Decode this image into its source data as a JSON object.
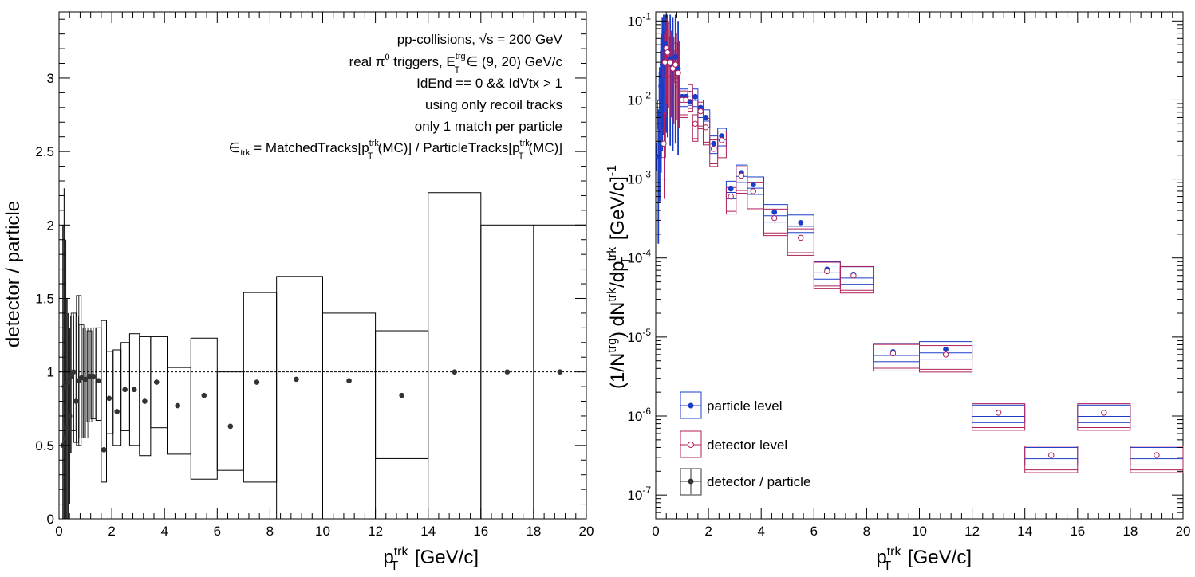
{
  "chart_data": [
    {
      "type": "scatter",
      "xlabel": "p_T^trk [GeV/c]",
      "ylabel": "detector / particle",
      "xlim": [
        0,
        20
      ],
      "ylim": [
        0,
        3.45
      ],
      "log_y": false,
      "grid": false,
      "reference_line": 1.0,
      "x_ticks": [
        "0",
        "2",
        "4",
        "6",
        "8",
        "10",
        "12",
        "14",
        "16",
        "18",
        "20"
      ],
      "y_ticks": [
        "0",
        "0.5",
        "1",
        "1.5",
        "2",
        "2.5",
        "3"
      ],
      "annotations": [
        "pp-collisions, √s = 200 GeV",
        "real π⁰ triggers, E_T^trg ∈ (9, 20) GeV/c",
        "IdEnd == 0 && IdVtx > 1",
        "using only recoil tracks",
        "only 1 match per particle",
        "∈_trk = MatchedTracks[p_T^trk(MC)] / ParticleTracks[p_T^trk(MC)]"
      ],
      "series": [
        {
          "name": "detector / particle",
          "x": [
            0.15,
            0.2,
            0.25,
            0.3,
            0.35,
            0.4,
            0.45,
            0.55,
            0.65,
            0.75,
            0.85,
            1.0,
            1.15,
            1.3,
            1.5,
            1.7,
            1.9,
            2.2,
            2.5,
            2.85,
            3.25,
            3.7,
            4.5,
            5.5,
            6.5,
            7.5,
            9,
            11,
            13,
            15,
            17,
            19
          ],
          "y": [
            0.5,
            0.9,
            0.55,
            0.62,
            0.93,
            0.7,
            0.97,
            1.0,
            0.8,
            0.94,
            0.96,
            0.95,
            0.97,
            0.97,
            0.94,
            0.47,
            0.82,
            0.73,
            0.88,
            0.88,
            0.8,
            0.93,
            0.77,
            0.84,
            0.63,
            0.93,
            0.95,
            0.94,
            0.84,
            1.0,
            1.0,
            1.0
          ],
          "ylow": [
            0.0,
            0.0,
            0.0,
            0.0,
            0.0,
            0.1,
            0.45,
            0.6,
            0.52,
            0.5,
            0.55,
            0.55,
            0.66,
            0.68,
            0.67,
            0.25,
            0.58,
            0.5,
            0.6,
            0.5,
            0.43,
            0.62,
            0.44,
            0.27,
            0.33,
            0.25,
            0.0,
            0.0,
            0.41,
            0.0,
            0.0,
            0.0
          ],
          "yhigh": [
            2.0,
            2.25,
            1.9,
            1.5,
            1.4,
            1.3,
            1.38,
            1.4,
            1.38,
            1.52,
            1.32,
            1.3,
            1.28,
            1.3,
            1.3,
            1.35,
            1.14,
            1.15,
            1.2,
            1.26,
            1.24,
            1.24,
            1.03,
            1.23,
            1.0,
            1.54,
            1.65,
            1.4,
            1.28,
            2.22,
            2.0,
            2.0
          ]
        }
      ]
    },
    {
      "type": "scatter",
      "xlabel": "p_T^trk [GeV/c]",
      "ylabel": "(1/N^trg) dN^trk/dp_T^trk [GeV/c]^-1",
      "xlim": [
        0,
        20
      ],
      "ylim": [
        5e-08,
        0.13
      ],
      "log_y": true,
      "grid": false,
      "x_ticks": [
        "0",
        "2",
        "4",
        "6",
        "8",
        "10",
        "12",
        "14",
        "16",
        "18",
        "20"
      ],
      "y_ticks": [
        "10^-7",
        "10^-6",
        "10^-5",
        "10^-4",
        "10^-3",
        "10^-2",
        "10^-1"
      ],
      "legend": [
        "particle level",
        "detector level",
        "detector / particle"
      ],
      "legend_position": "bottom-left",
      "series": [
        {
          "name": "particle level",
          "color": "#1a3cc8",
          "x": [
            0.1,
            0.15,
            0.2,
            0.25,
            0.3,
            0.35,
            0.4,
            0.45,
            0.55,
            0.65,
            0.75,
            0.85,
            1.0,
            1.15,
            1.3,
            1.5,
            1.7,
            1.9,
            2.2,
            2.5,
            2.85,
            3.25,
            3.7,
            4.5,
            5.5,
            6.5,
            7.5,
            9,
            11,
            13,
            15,
            17,
            19
          ],
          "y": [
            0.0019,
            0.0065,
            0.015,
            0.028,
            0.045,
            0.052,
            0.048,
            0.042,
            0.033,
            0.028,
            0.035,
            0.025,
            0.011,
            0.011,
            0.0095,
            0.011,
            0.008,
            0.006,
            0.0028,
            0.0035,
            0.00075,
            0.0012,
            0.00085,
            0.00038,
            0.00028,
            7.2e-05,
            6.2e-05,
            6.5e-06,
            7e-06,
            1.1e-06,
            3.2e-07,
            1.1e-06,
            3.2e-07
          ]
        },
        {
          "name": "detector level",
          "color": "#b0205a",
          "x": [
            0.3,
            0.35,
            0.4,
            0.45,
            0.55,
            0.65,
            0.75,
            0.85,
            1.0,
            1.15,
            1.3,
            1.5,
            1.7,
            1.9,
            2.2,
            2.5,
            2.85,
            3.25,
            3.7,
            4.5,
            5.5,
            6.5,
            7.5,
            9,
            11,
            13,
            15,
            17,
            19
          ],
          "y": [
            0.0028,
            0.03,
            0.045,
            0.04,
            0.03,
            0.025,
            0.028,
            0.022,
            0.01,
            0.01,
            0.012,
            0.005,
            0.0072,
            0.0045,
            0.0024,
            0.0031,
            0.0006,
            0.0011,
            0.0007,
            0.00032,
            0.00018,
            6.8e-05,
            6e-05,
            6.2e-06,
            6e-06,
            1.1e-06,
            3.2e-07,
            1.1e-06,
            3.2e-07
          ]
        }
      ]
    }
  ]
}
